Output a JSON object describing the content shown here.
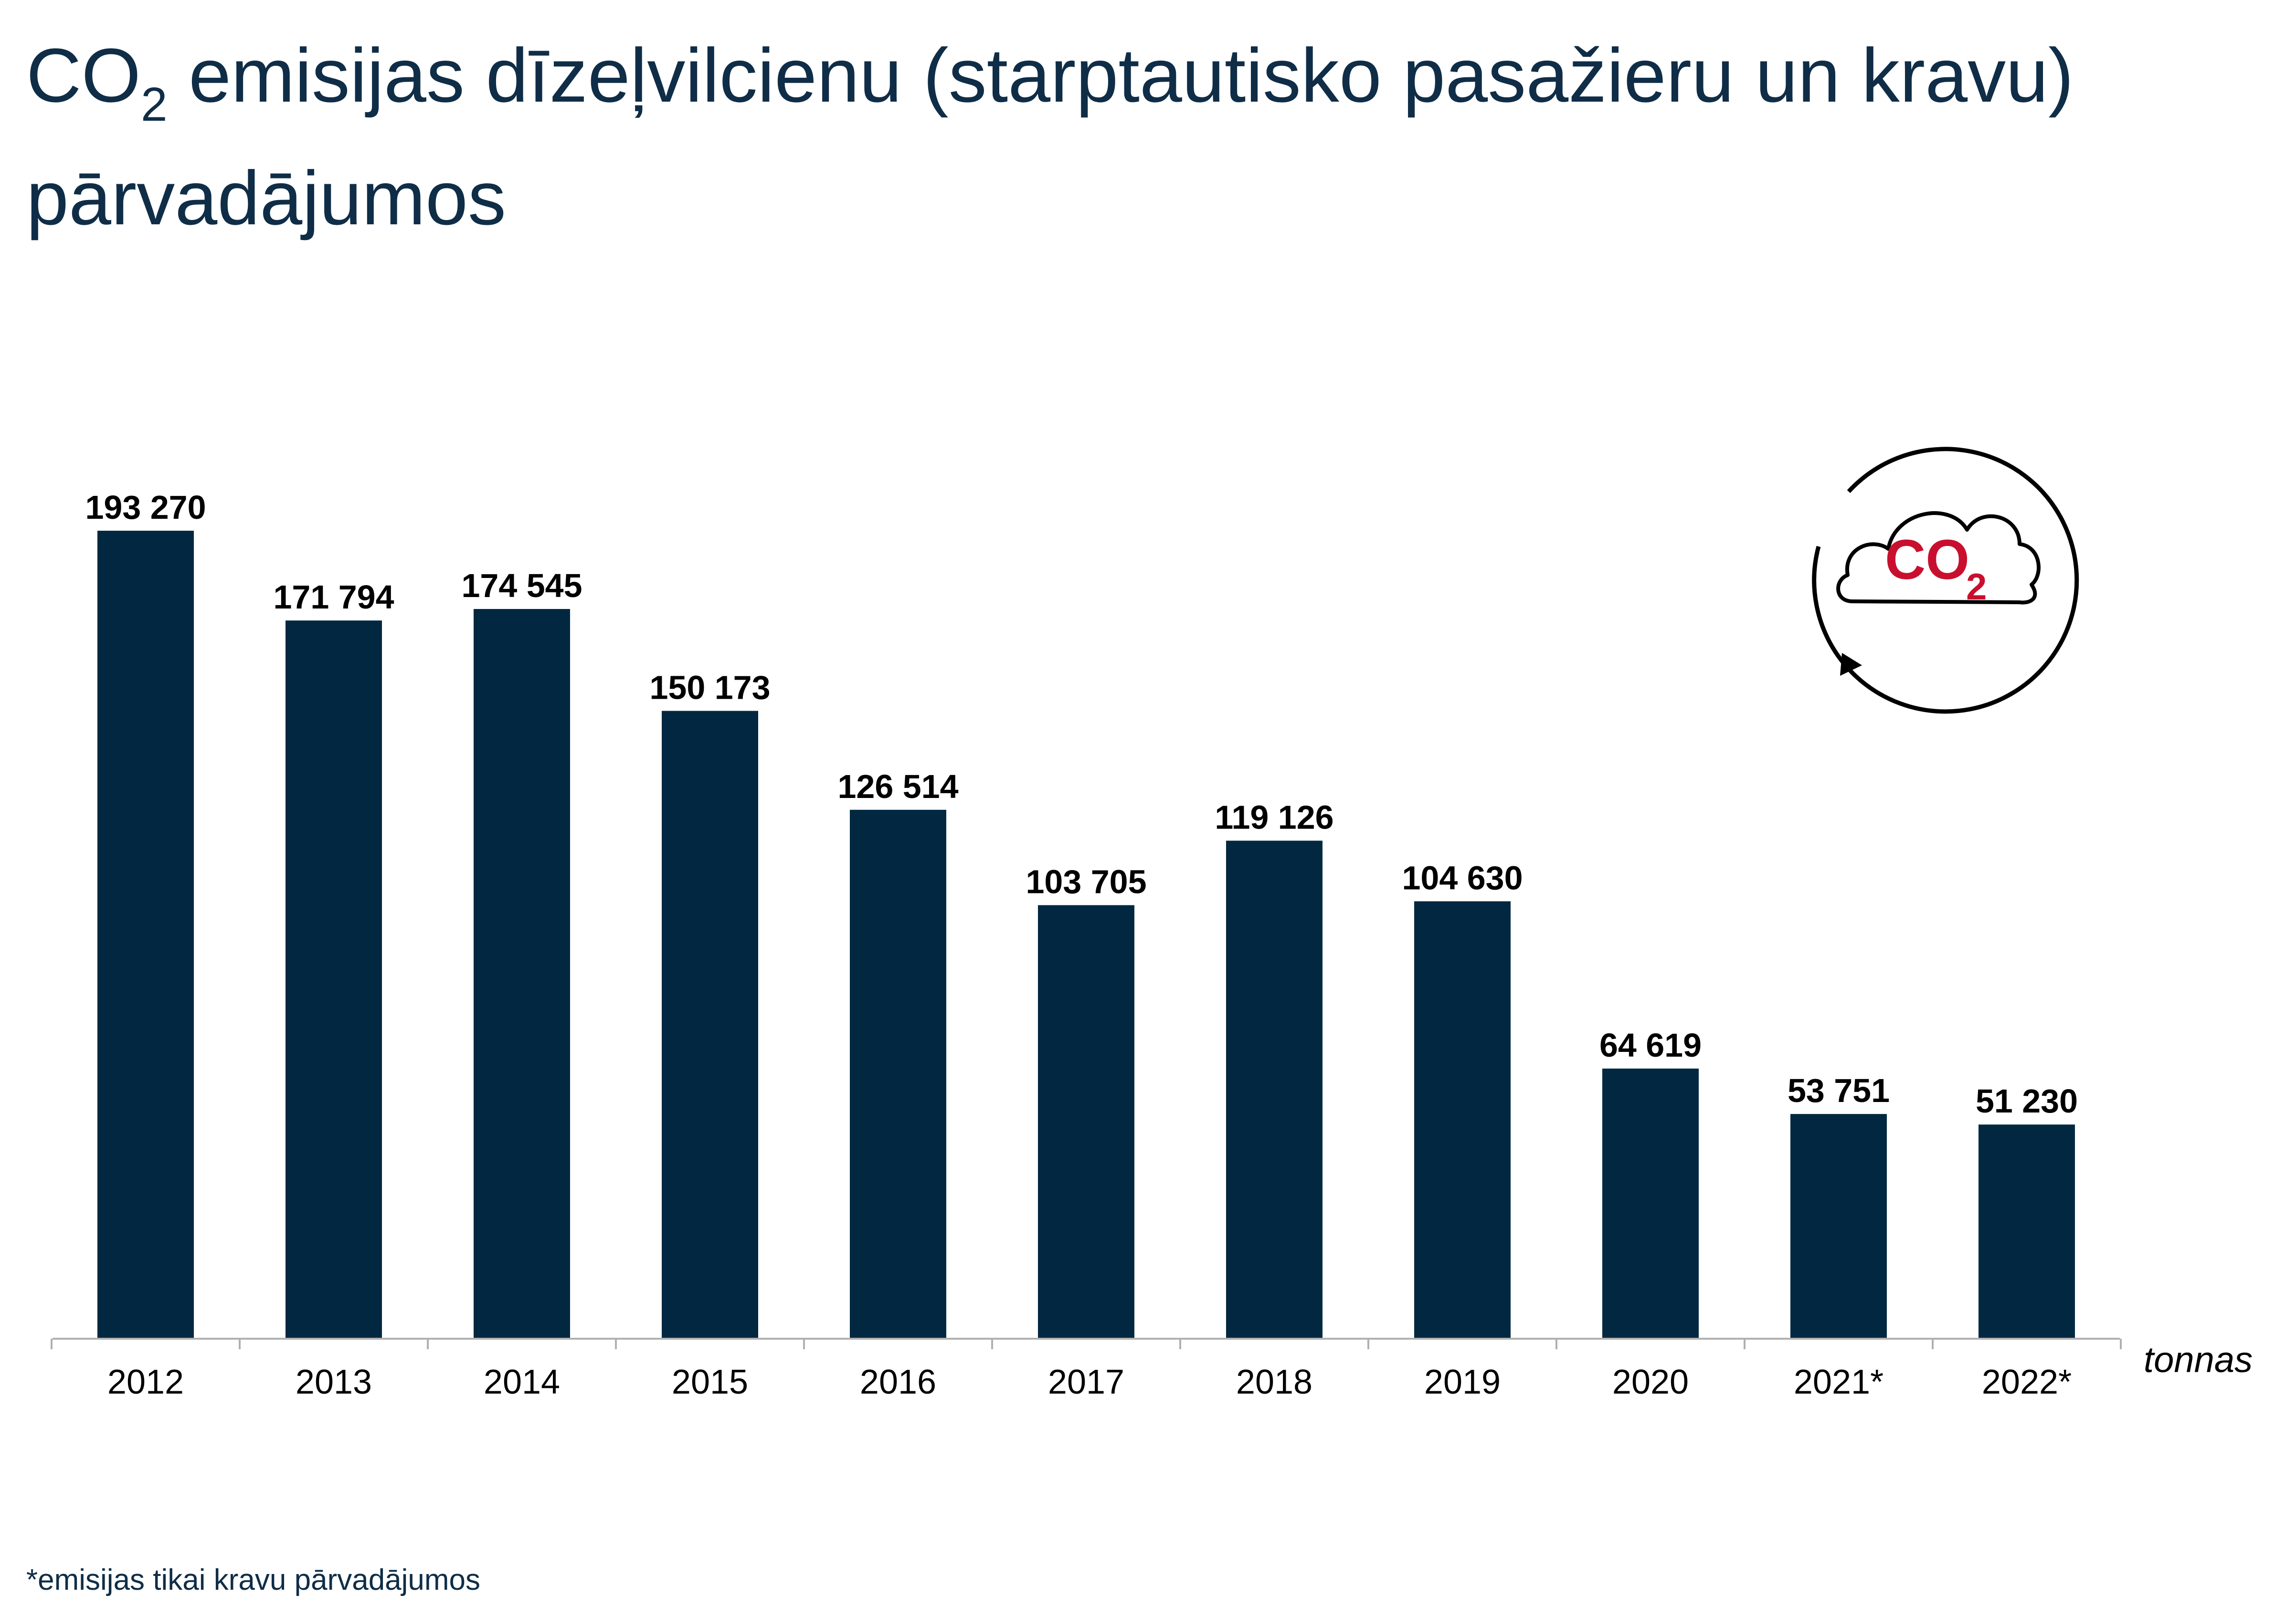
{
  "title": {
    "prefix": "CO",
    "subscript": "2",
    "rest": " emisijas dīzeļvilcienu (starptautisko pasažieru un kravu) pārvadājumos"
  },
  "footnote": "*emisijas tikai kravu pārvadājumos",
  "icon": {
    "name": "co2-cloud-cycle-icon",
    "label_main": "CO",
    "label_sub": "2"
  },
  "colors": {
    "bar": "#022841",
    "title": "#0f2d47",
    "accent": "#c8102e",
    "axis": "#b0b0b0"
  },
  "chart_data": {
    "type": "bar",
    "categories": [
      "2012",
      "2013",
      "2014",
      "2015",
      "2016",
      "2017",
      "2018",
      "2019",
      "2020",
      "2021*",
      "2022*"
    ],
    "values": [
      193270,
      171794,
      174545,
      150173,
      126514,
      103705,
      119126,
      104630,
      64619,
      53751,
      51230
    ],
    "value_labels": [
      "193 270",
      "171 794",
      "174 545",
      "150 173",
      "126 514",
      "103 705",
      "119 126",
      "104 630",
      "64 619",
      "53 751",
      "51 230"
    ],
    "unit": "tonnas",
    "ylim": [
      0,
      193270
    ],
    "grid": false,
    "legend": "none"
  }
}
